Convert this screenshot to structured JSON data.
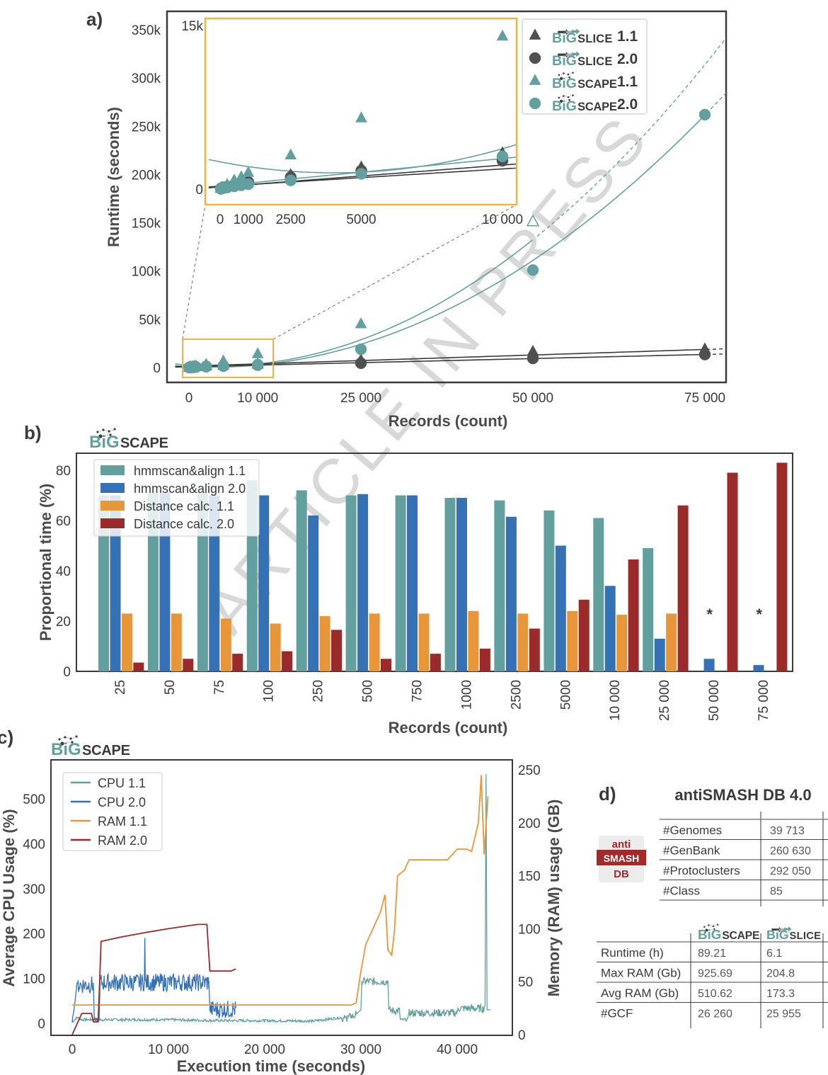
{
  "panel_labels": {
    "a": "a)",
    "b": "b)",
    "c": "c)",
    "d": "d)"
  },
  "watermark": "ARTICLE IN PRESS",
  "logos": {
    "bigscape": {
      "prefix": "BiG",
      "suffix": "SCAPE"
    },
    "bigslice": {
      "prefix": "BiG",
      "suffix": "SLiCE"
    }
  },
  "colors": {
    "teal": "#62a0a0",
    "dark": "#505050",
    "blue": "#3572b5",
    "orange": "#e8963a",
    "red": "#9a2b2a",
    "inset_border": "#f0b443",
    "antismash_red": "#a32a28"
  },
  "chart_data": [
    {
      "id": "a",
      "type": "scatter",
      "title": "",
      "xlabel": "Records (count)",
      "ylabel": "Runtime (seconds)",
      "xlim": [
        -2000,
        77000
      ],
      "ylim": [
        -8000,
        360000
      ],
      "xticks": [
        0,
        10000,
        25000,
        50000,
        75000
      ],
      "xtick_labels": [
        "0",
        "10 000",
        "25 000",
        "50 000",
        "75 000"
      ],
      "yticks": [
        0,
        50000,
        100000,
        150000,
        200000,
        250000,
        300000,
        350000
      ],
      "ytick_labels": [
        "0",
        "50k",
        "100k",
        "150k",
        "200k",
        "250k",
        "300k",
        "350k"
      ],
      "legend_position": "top-right",
      "series": [
        {
          "name": "BiG-SLiCE 1.1",
          "tool": "bigslice",
          "version": "1.1",
          "marker": "triangle",
          "color": "#505050",
          "x": [
            25,
            50,
            75,
            100,
            250,
            500,
            750,
            1000,
            2500,
            5000,
            10000,
            25000,
            50000,
            75000
          ],
          "y": [
            60,
            90,
            120,
            150,
            250,
            450,
            600,
            750,
            1300,
            2000,
            3300,
            7500,
            16500,
            19000
          ]
        },
        {
          "name": "BiG-SLiCE 2.0",
          "tool": "bigslice",
          "version": "2.0",
          "marker": "circle",
          "color": "#505050",
          "x": [
            25,
            50,
            75,
            100,
            250,
            500,
            750,
            1000,
            2500,
            5000,
            10000,
            25000,
            50000,
            75000
          ],
          "y": [
            50,
            80,
            100,
            130,
            220,
            400,
            520,
            650,
            1100,
            1700,
            2600,
            4500,
            9500,
            13500
          ]
        },
        {
          "name": "BiG-SCAPE 1.1",
          "tool": "bigscape",
          "version": "1.1",
          "marker": "triangle",
          "color": "#62a0a0",
          "x": [
            25,
            50,
            75,
            100,
            250,
            500,
            750,
            1000,
            2500,
            5000,
            10000,
            25000,
            50000
          ],
          "y": [
            30,
            60,
            100,
            150,
            400,
            800,
            1100,
            1500,
            3100,
            6500,
            14000,
            45000,
            151000
          ],
          "extrapolated_last": true
        },
        {
          "name": "BiG-SCAPE 2.0",
          "tool": "bigscape",
          "version": "2.0",
          "marker": "circle",
          "color": "#62a0a0",
          "x": [
            25,
            50,
            75,
            100,
            250,
            500,
            750,
            1000,
            2500,
            5000,
            10000,
            25000,
            50000,
            75000
          ],
          "y": [
            20,
            40,
            60,
            80,
            150,
            250,
            350,
            450,
            800,
            1400,
            3000,
            19000,
            101000,
            262000
          ]
        }
      ],
      "inset": {
        "xlim": [
          -400,
          10400
        ],
        "ylim": [
          -1000,
          15000
        ],
        "xticks": [
          0,
          1000,
          2500,
          5000,
          10000
        ],
        "xtick_labels": [
          "0",
          "1000",
          "2500",
          "5000",
          "10 000"
        ],
        "yticks": [
          0,
          15000
        ],
        "ytick_labels": [
          "0",
          "15k"
        ]
      }
    },
    {
      "id": "b",
      "type": "bar",
      "title": "BiG-SCAPE",
      "xlabel": "Records (count)",
      "ylabel": "Proportional time (%)",
      "ylim": [
        0,
        85
      ],
      "yticks": [
        0,
        20,
        40,
        60,
        80
      ],
      "categories": [
        "25",
        "50",
        "75",
        "100",
        "250",
        "500",
        "750",
        "1000",
        "2500",
        "5000",
        "10 000",
        "25 000",
        "50 000",
        "75 000"
      ],
      "legend_position": "top-left",
      "series": [
        {
          "name": "hmmscan&align 1.1",
          "color": "#62a0a0",
          "values": [
            70,
            71,
            71,
            76,
            72,
            70,
            70,
            69,
            68,
            64,
            61,
            49,
            null,
            null
          ]
        },
        {
          "name": "hmmscan&align 2.0",
          "color": "#3572b5",
          "values": [
            70,
            71,
            70,
            70,
            62,
            70.5,
            70,
            69,
            61.5,
            50,
            34,
            13,
            5,
            2.5
          ]
        },
        {
          "name": "Distance calc. 1.1",
          "color": "#e8963a",
          "values": [
            23,
            23,
            21,
            19,
            22,
            23,
            23,
            24,
            23,
            24,
            22.5,
            23,
            null,
            null
          ]
        },
        {
          "name": "Distance calc. 2.0",
          "color": "#9a2b2a",
          "values": [
            3.5,
            5,
            7,
            8,
            16.5,
            5,
            7,
            9,
            17,
            28.5,
            44.5,
            66,
            79,
            83
          ]
        }
      ],
      "annotations": [
        {
          "category": "50 000",
          "text": "*",
          "y": 24
        },
        {
          "category": "75 000",
          "text": "*",
          "y": 24
        }
      ]
    },
    {
      "id": "c",
      "type": "line",
      "title": "BiG-SCAPE",
      "xlabel": "Execution time (seconds)",
      "ylabel": "Average CPU Usage (%)",
      "ylabel_right": "Memory (RAM) usage (GB)",
      "xlim": [
        -1500,
        45000
      ],
      "ylim": [
        -30,
        580
      ],
      "ylim_right": [
        -15,
        255
      ],
      "xticks": [
        0,
        10000,
        20000,
        30000,
        40000
      ],
      "xtick_labels": [
        "0",
        "10 000",
        "20 000",
        "30 000",
        "40 000"
      ],
      "yticks": [
        0,
        100,
        200,
        300,
        400,
        500
      ],
      "yticks_right": [
        0,
        50,
        100,
        150,
        200,
        250
      ],
      "legend_position": "top-left",
      "series": [
        {
          "name": "CPU 1.1",
          "axis": "left",
          "color": "#62a0a0",
          "x": [
            0,
            500,
            1000,
            5000,
            10000,
            15000,
            20000,
            25000,
            28000,
            29500,
            30000,
            30100,
            32800,
            32900,
            34000,
            34100,
            34800,
            35000,
            40000,
            40100,
            42800,
            42900,
            43000,
            43100,
            43500
          ],
          "y": [
            0,
            10,
            5,
            5,
            5,
            3,
            3,
            2,
            10,
            20,
            30,
            95,
            95,
            30,
            30,
            5,
            5,
            25,
            25,
            35,
            35,
            40,
            555,
            30,
            30
          ]
        },
        {
          "name": "CPU 2.0",
          "axis": "left",
          "color": "#3572b5",
          "x": [
            0,
            300,
            500,
            600,
            2200,
            2300,
            2800,
            2900,
            7500,
            7550,
            7600,
            14200,
            14300,
            17000
          ],
          "y": [
            0,
            50,
            90,
            90,
            90,
            5,
            5,
            95,
            95,
            190,
            95,
            95,
            35,
            35
          ]
        },
        {
          "name": "RAM 1.1",
          "axis": "right",
          "color": "#e8963a",
          "x": [
            0,
            10000,
            20000,
            29000,
            29500,
            30000,
            30500,
            31000,
            32000,
            32500,
            32800,
            33200,
            33500,
            33800,
            34500,
            35000,
            36000,
            39000,
            40000,
            41000,
            41500,
            42200,
            42500,
            42800,
            43200
          ],
          "y": [
            28,
            28,
            28,
            28,
            30,
            60,
            85,
            95,
            115,
            132,
            80,
            75,
            100,
            150,
            155,
            165,
            165,
            165,
            175,
            175,
            173,
            200,
            245,
            170,
            225
          ]
        },
        {
          "name": "RAM 2.0",
          "axis": "right",
          "color": "#9a2b2a",
          "x": [
            0,
            500,
            1000,
            2000,
            2200,
            2700,
            3000,
            5000,
            8000,
            10000,
            13000,
            14000,
            14300,
            15500,
            16500,
            17000
          ],
          "y": [
            0,
            10,
            20,
            20,
            12,
            12,
            88,
            92,
            97,
            100,
            104,
            104,
            60,
            60,
            60,
            62
          ]
        }
      ]
    }
  ],
  "panel_d": {
    "title": "antiSMASH DB 4.0",
    "logo": {
      "line1": "anti",
      "line2": "SMASH",
      "line3": "DB"
    },
    "db_table": [
      {
        "label": "#Genomes",
        "value": "39 713"
      },
      {
        "label": "#GenBank",
        "value": "260 630"
      },
      {
        "label": "#Protoclusters",
        "value": "292 050"
      },
      {
        "label": "#Class",
        "value": "85"
      }
    ],
    "compare_table": {
      "columns": [
        "BiG-SCAPE",
        "BiG-SLiCE"
      ],
      "rows": [
        {
          "label": "Runtime (h)",
          "values": [
            "89.21",
            "6.1"
          ]
        },
        {
          "label": "Max RAM (Gb)",
          "values": [
            "925.69",
            "204.8"
          ]
        },
        {
          "label": "Avg RAM (Gb)",
          "values": [
            "510.62",
            "173.3"
          ]
        },
        {
          "label": "#GCF",
          "values": [
            "26 260",
            "25 955"
          ]
        }
      ]
    }
  }
}
